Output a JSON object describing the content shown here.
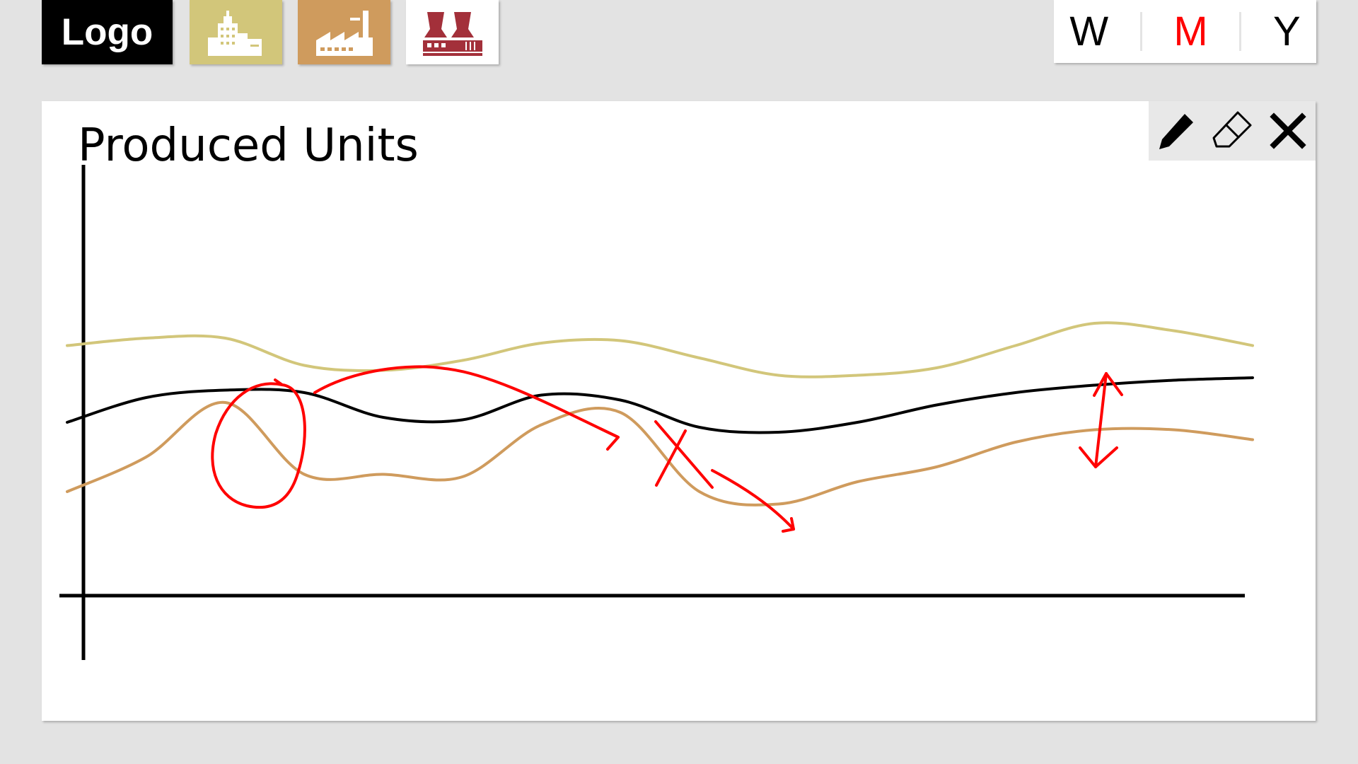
{
  "header": {
    "logo_text": "Logo",
    "plant_tiles": [
      {
        "icon": "office-building-plant-icon",
        "color": "#d2c67a"
      },
      {
        "icon": "factory-icon",
        "color": "#cf9b5d"
      },
      {
        "icon": "power-plant-cooling-towers-icon",
        "color": "#a3303a"
      }
    ],
    "period_options": [
      {
        "label": "W",
        "selected": false
      },
      {
        "label": "M",
        "selected": true
      },
      {
        "label": "Y",
        "selected": false
      }
    ],
    "period_selected_color": "#ff0000",
    "period_default_color": "#000000"
  },
  "panel": {
    "title": "Produced Units",
    "toolbar": [
      "pencil-icon",
      "eraser-icon",
      "close-icon"
    ]
  },
  "chart_data": {
    "type": "line",
    "title": "Produced Units",
    "xlabel": "",
    "ylabel": "",
    "series": [
      {
        "color": "#d2c67a",
        "values": [
          5.05,
          5.2,
          5.2,
          4.65,
          4.55,
          4.75,
          5.1,
          5.15,
          4.8,
          4.45,
          4.45,
          4.6,
          5.05,
          5.5,
          5.35,
          5.05
        ]
      },
      {
        "color": "#000000",
        "values": [
          3.5,
          4.0,
          4.15,
          4.1,
          3.6,
          3.55,
          4.05,
          3.95,
          3.4,
          3.3,
          3.5,
          3.85,
          4.1,
          4.25,
          4.35,
          4.4
        ]
      },
      {
        "color": "#cf9b5d",
        "values": [
          2.1,
          2.8,
          3.9,
          2.45,
          2.45,
          2.4,
          3.45,
          3.7,
          2.1,
          1.85,
          2.3,
          2.6,
          3.1,
          3.35,
          3.35,
          3.15
        ]
      }
    ],
    "ylim": [
      0,
      11
    ],
    "annotations": [
      "circle",
      "arrow",
      "cross",
      "arrow",
      "double-arrow"
    ],
    "annotation_color": "#ff0000"
  }
}
